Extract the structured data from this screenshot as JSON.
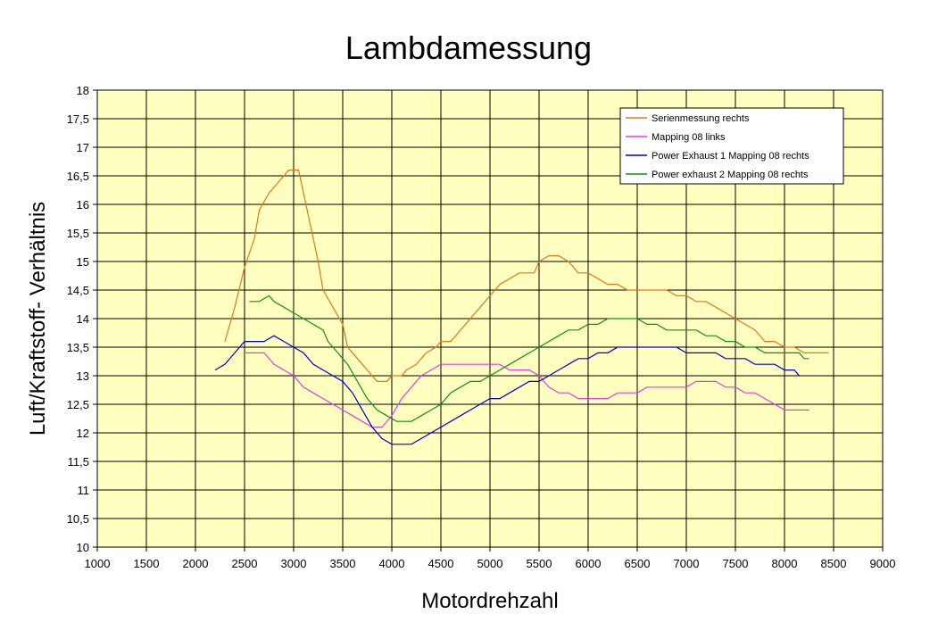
{
  "chart_data": {
    "type": "line",
    "title": "Lambdamessung",
    "xlabel": "Motordrehzahl",
    "ylabel": "Luft/Kraftstoff- Verhältnis",
    "xlim": [
      1000,
      9000
    ],
    "ylim": [
      10,
      18
    ],
    "xticks": [
      1000,
      1500,
      2000,
      2500,
      3000,
      3500,
      4000,
      4500,
      5000,
      5500,
      6000,
      6500,
      7000,
      7500,
      8000,
      8500,
      9000
    ],
    "yticks": [
      10,
      10.5,
      11,
      11.5,
      12,
      12.5,
      13,
      13.5,
      14,
      14.5,
      15,
      15.5,
      16,
      16.5,
      17,
      17.5,
      18
    ],
    "xtick_labels": [
      "1000",
      "1500",
      "2000",
      "2500",
      "3000",
      "3500",
      "4000",
      "4500",
      "5000",
      "5500",
      "6000",
      "6500",
      "7000",
      "7500",
      "8000",
      "8500",
      "9000"
    ],
    "ytick_labels": [
      "10",
      "10,5",
      "11",
      "11,5",
      "12",
      "12,5",
      "13",
      "13,5",
      "14",
      "14,5",
      "15",
      "15,5",
      "16",
      "16,5",
      "17",
      "17,5",
      "18"
    ],
    "grid": true,
    "plot_background": "#ffffc0",
    "legend_position": "top-right",
    "series": [
      {
        "name": "Serienmessung rechts",
        "color": "#e07818",
        "points": [
          [
            2300,
            13.6
          ],
          [
            2400,
            14.2
          ],
          [
            2500,
            14.9
          ],
          [
            2600,
            15.4
          ],
          [
            2650,
            15.9
          ],
          [
            2750,
            16.2
          ],
          [
            2850,
            16.4
          ],
          [
            2950,
            16.6
          ],
          [
            3050,
            16.6
          ],
          [
            3150,
            15.8
          ],
          [
            3250,
            15.0
          ],
          [
            3300,
            14.5
          ],
          [
            3400,
            14.2
          ],
          [
            3500,
            13.9
          ],
          [
            3550,
            13.5
          ],
          [
            3650,
            13.3
          ],
          [
            3750,
            13.1
          ],
          [
            3850,
            12.9
          ],
          [
            3950,
            12.9
          ],
          [
            4000,
            13.0
          ],
          [
            4050,
            13.0
          ],
          [
            4100,
            13.0
          ],
          [
            4150,
            13.1
          ],
          [
            4250,
            13.2
          ],
          [
            4350,
            13.4
          ],
          [
            4450,
            13.5
          ],
          [
            4500,
            13.6
          ],
          [
            4600,
            13.6
          ],
          [
            4700,
            13.8
          ],
          [
            4800,
            14.0
          ],
          [
            4900,
            14.2
          ],
          [
            5000,
            14.4
          ],
          [
            5100,
            14.6
          ],
          [
            5200,
            14.7
          ],
          [
            5300,
            14.8
          ],
          [
            5450,
            14.8
          ],
          [
            5500,
            15.0
          ],
          [
            5600,
            15.1
          ],
          [
            5700,
            15.1
          ],
          [
            5800,
            15.0
          ],
          [
            5900,
            14.8
          ],
          [
            6000,
            14.8
          ],
          [
            6100,
            14.7
          ],
          [
            6200,
            14.6
          ],
          [
            6300,
            14.6
          ],
          [
            6400,
            14.5
          ],
          [
            6600,
            14.5
          ],
          [
            6800,
            14.5
          ],
          [
            6900,
            14.4
          ],
          [
            7000,
            14.4
          ],
          [
            7100,
            14.3
          ],
          [
            7200,
            14.3
          ],
          [
            7300,
            14.2
          ],
          [
            7400,
            14.1
          ],
          [
            7500,
            14.0
          ],
          [
            7600,
            13.9
          ],
          [
            7700,
            13.8
          ],
          [
            7800,
            13.6
          ],
          [
            7900,
            13.6
          ],
          [
            8000,
            13.5
          ],
          [
            8100,
            13.5
          ],
          [
            8200,
            13.4
          ],
          [
            8300,
            13.4
          ],
          [
            8450,
            13.4
          ]
        ]
      },
      {
        "name": "Mapping 08 links",
        "color": "#e040e0",
        "points": [
          [
            2500,
            13.4
          ],
          [
            2600,
            13.4
          ],
          [
            2700,
            13.4
          ],
          [
            2800,
            13.2
          ],
          [
            2900,
            13.1
          ],
          [
            3000,
            13.0
          ],
          [
            3100,
            12.8
          ],
          [
            3200,
            12.7
          ],
          [
            3300,
            12.6
          ],
          [
            3400,
            12.5
          ],
          [
            3500,
            12.4
          ],
          [
            3600,
            12.3
          ],
          [
            3700,
            12.2
          ],
          [
            3800,
            12.1
          ],
          [
            3900,
            12.1
          ],
          [
            4000,
            12.3
          ],
          [
            4100,
            12.6
          ],
          [
            4200,
            12.8
          ],
          [
            4300,
            13.0
          ],
          [
            4400,
            13.1
          ],
          [
            4500,
            13.2
          ],
          [
            4600,
            13.2
          ],
          [
            4700,
            13.2
          ],
          [
            4900,
            13.2
          ],
          [
            5100,
            13.2
          ],
          [
            5200,
            13.1
          ],
          [
            5400,
            13.1
          ],
          [
            5500,
            13.0
          ],
          [
            5600,
            12.8
          ],
          [
            5700,
            12.7
          ],
          [
            5800,
            12.7
          ],
          [
            5900,
            12.6
          ],
          [
            6100,
            12.6
          ],
          [
            6200,
            12.6
          ],
          [
            6300,
            12.7
          ],
          [
            6400,
            12.7
          ],
          [
            6500,
            12.7
          ],
          [
            6600,
            12.8
          ],
          [
            6700,
            12.8
          ],
          [
            6800,
            12.8
          ],
          [
            6900,
            12.8
          ],
          [
            7000,
            12.8
          ],
          [
            7100,
            12.9
          ],
          [
            7200,
            12.9
          ],
          [
            7300,
            12.9
          ],
          [
            7400,
            12.8
          ],
          [
            7500,
            12.8
          ],
          [
            7600,
            12.7
          ],
          [
            7700,
            12.7
          ],
          [
            7800,
            12.6
          ],
          [
            7900,
            12.5
          ],
          [
            8000,
            12.4
          ],
          [
            8100,
            12.4
          ],
          [
            8200,
            12.4
          ],
          [
            8250,
            12.4
          ]
        ]
      },
      {
        "name": "Power Exhaust 1 Mapping 08 rechts",
        "color": "#0000c8",
        "points": [
          [
            2200,
            13.1
          ],
          [
            2300,
            13.2
          ],
          [
            2400,
            13.4
          ],
          [
            2500,
            13.6
          ],
          [
            2600,
            13.6
          ],
          [
            2700,
            13.6
          ],
          [
            2800,
            13.7
          ],
          [
            2900,
            13.6
          ],
          [
            3000,
            13.5
          ],
          [
            3100,
            13.4
          ],
          [
            3200,
            13.2
          ],
          [
            3300,
            13.1
          ],
          [
            3400,
            13.0
          ],
          [
            3500,
            12.9
          ],
          [
            3600,
            12.7
          ],
          [
            3700,
            12.4
          ],
          [
            3800,
            12.1
          ],
          [
            3900,
            11.9
          ],
          [
            4000,
            11.8
          ],
          [
            4100,
            11.8
          ],
          [
            4200,
            11.8
          ],
          [
            4300,
            11.9
          ],
          [
            4400,
            12.0
          ],
          [
            4500,
            12.1
          ],
          [
            4600,
            12.2
          ],
          [
            4700,
            12.3
          ],
          [
            4800,
            12.4
          ],
          [
            4900,
            12.5
          ],
          [
            5000,
            12.6
          ],
          [
            5100,
            12.6
          ],
          [
            5200,
            12.7
          ],
          [
            5300,
            12.8
          ],
          [
            5400,
            12.9
          ],
          [
            5500,
            12.9
          ],
          [
            5600,
            13.0
          ],
          [
            5700,
            13.1
          ],
          [
            5800,
            13.2
          ],
          [
            5900,
            13.3
          ],
          [
            6000,
            13.3
          ],
          [
            6100,
            13.4
          ],
          [
            6200,
            13.4
          ],
          [
            6300,
            13.5
          ],
          [
            6400,
            13.5
          ],
          [
            6500,
            13.5
          ],
          [
            6600,
            13.5
          ],
          [
            6700,
            13.5
          ],
          [
            6800,
            13.5
          ],
          [
            6900,
            13.5
          ],
          [
            7000,
            13.4
          ],
          [
            7100,
            13.4
          ],
          [
            7200,
            13.4
          ],
          [
            7300,
            13.4
          ],
          [
            7400,
            13.3
          ],
          [
            7500,
            13.3
          ],
          [
            7600,
            13.3
          ],
          [
            7700,
            13.2
          ],
          [
            7800,
            13.2
          ],
          [
            7900,
            13.2
          ],
          [
            8000,
            13.1
          ],
          [
            8100,
            13.1
          ],
          [
            8150,
            13.0
          ]
        ]
      },
      {
        "name": "Power exhaust 2 Mapping 08 rechts",
        "color": "#109010",
        "points": [
          [
            2550,
            14.3
          ],
          [
            2650,
            14.3
          ],
          [
            2750,
            14.4
          ],
          [
            2800,
            14.3
          ],
          [
            2900,
            14.2
          ],
          [
            3000,
            14.1
          ],
          [
            3100,
            14.0
          ],
          [
            3200,
            13.9
          ],
          [
            3300,
            13.8
          ],
          [
            3350,
            13.6
          ],
          [
            3450,
            13.4
          ],
          [
            3550,
            13.2
          ],
          [
            3650,
            12.9
          ],
          [
            3750,
            12.6
          ],
          [
            3850,
            12.4
          ],
          [
            3950,
            12.3
          ],
          [
            4050,
            12.2
          ],
          [
            4100,
            12.2
          ],
          [
            4200,
            12.2
          ],
          [
            4300,
            12.3
          ],
          [
            4400,
            12.4
          ],
          [
            4500,
            12.5
          ],
          [
            4600,
            12.7
          ],
          [
            4700,
            12.8
          ],
          [
            4800,
            12.9
          ],
          [
            4900,
            12.9
          ],
          [
            5000,
            13.0
          ],
          [
            5100,
            13.1
          ],
          [
            5200,
            13.2
          ],
          [
            5300,
            13.3
          ],
          [
            5400,
            13.4
          ],
          [
            5500,
            13.5
          ],
          [
            5600,
            13.6
          ],
          [
            5700,
            13.7
          ],
          [
            5800,
            13.8
          ],
          [
            5900,
            13.8
          ],
          [
            6000,
            13.9
          ],
          [
            6100,
            13.9
          ],
          [
            6200,
            14.0
          ],
          [
            6300,
            14.0
          ],
          [
            6400,
            14.0
          ],
          [
            6500,
            14.0
          ],
          [
            6600,
            13.9
          ],
          [
            6700,
            13.9
          ],
          [
            6800,
            13.8
          ],
          [
            6900,
            13.8
          ],
          [
            7000,
            13.8
          ],
          [
            7100,
            13.8
          ],
          [
            7200,
            13.7
          ],
          [
            7300,
            13.7
          ],
          [
            7400,
            13.6
          ],
          [
            7500,
            13.6
          ],
          [
            7600,
            13.5
          ],
          [
            7700,
            13.5
          ],
          [
            7800,
            13.4
          ],
          [
            7900,
            13.4
          ],
          [
            8000,
            13.4
          ],
          [
            8100,
            13.4
          ],
          [
            8150,
            13.4
          ],
          [
            8200,
            13.3
          ],
          [
            8250,
            13.3
          ]
        ]
      }
    ]
  }
}
